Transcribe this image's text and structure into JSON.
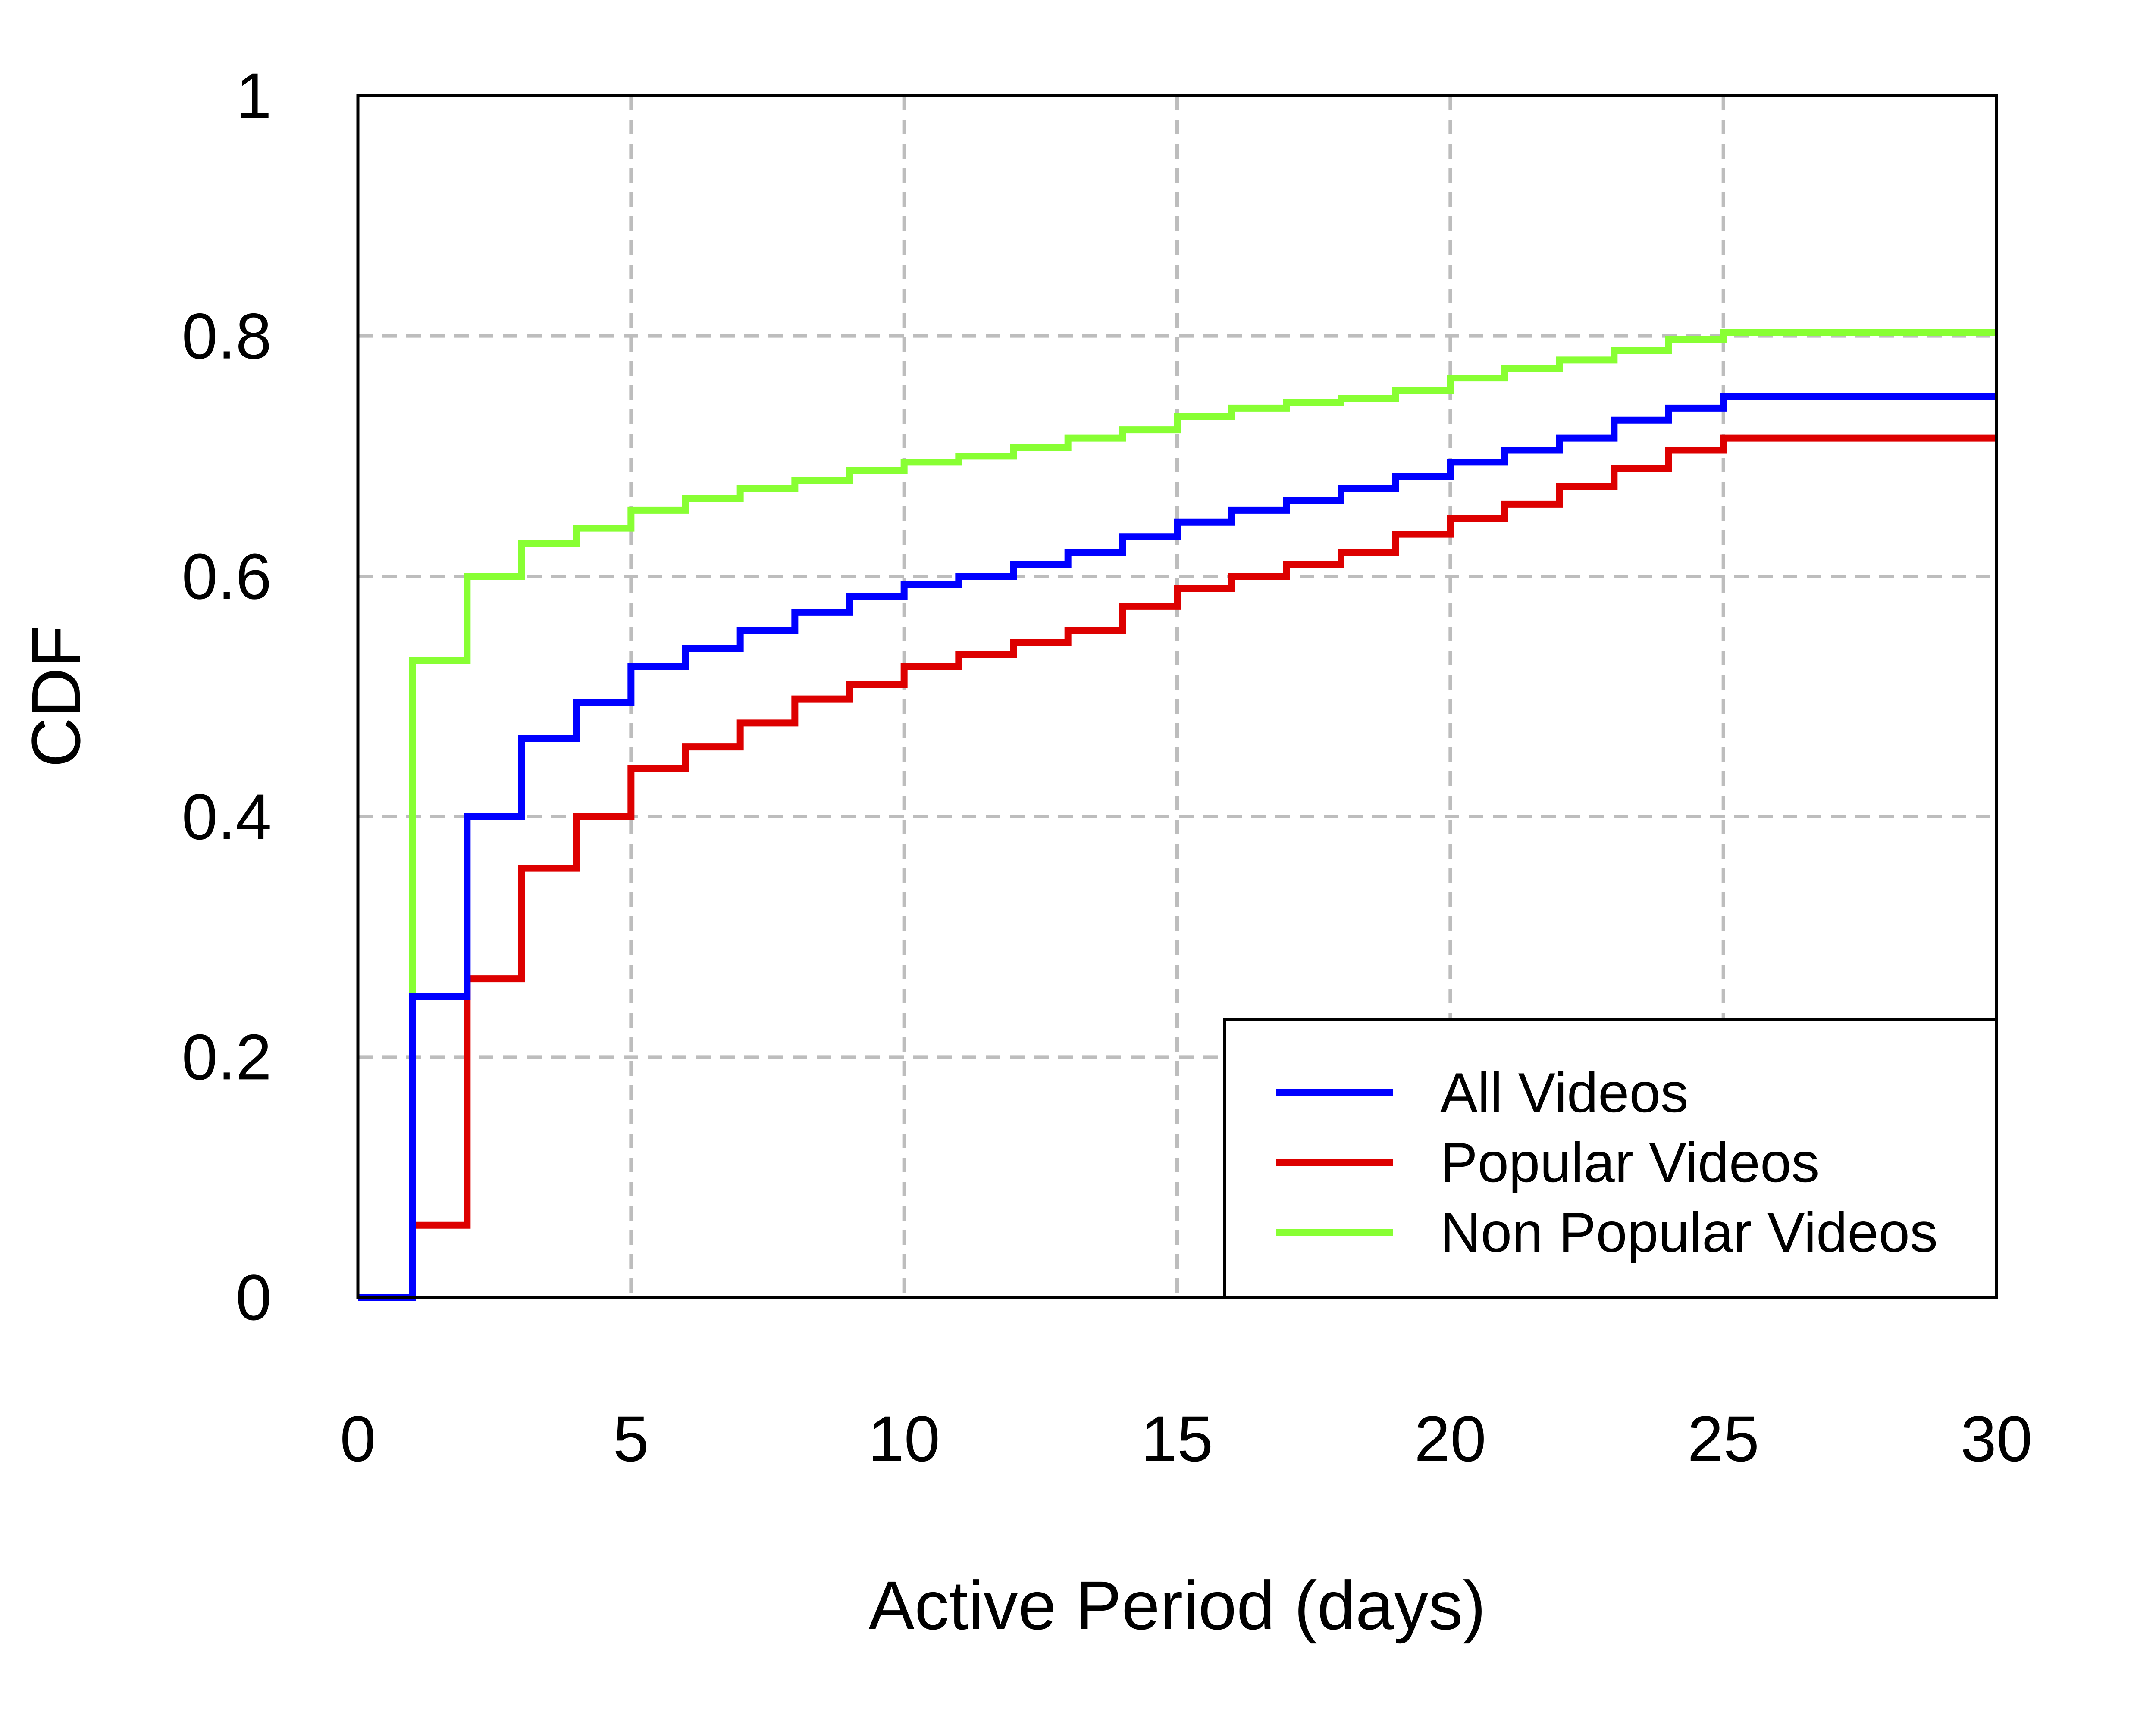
{
  "chart_data": {
    "type": "line",
    "step": true,
    "title": "",
    "xlabel": "Active Period (days)",
    "ylabel": "CDF",
    "xlim": [
      0,
      30
    ],
    "ylim": [
      0,
      1
    ],
    "xticks": [
      "0",
      "5",
      "10",
      "15",
      "20",
      "25",
      "30"
    ],
    "yticks": [
      "0",
      "0.2",
      "0.4",
      "0.6",
      "0.8",
      "1"
    ],
    "grid": true,
    "legend_position": "bottom-right",
    "x": [
      0,
      1,
      2,
      3,
      4,
      5,
      6,
      7,
      8,
      9,
      10,
      11,
      12,
      13,
      14,
      15,
      16,
      17,
      18,
      19,
      20,
      21,
      22,
      23,
      24,
      25,
      26,
      27,
      28,
      29,
      30
    ],
    "series": [
      {
        "name": "All Videos",
        "color": "#0000ff",
        "values": [
          0,
          0.25,
          0.4,
          0.465,
          0.495,
          0.525,
          0.54,
          0.555,
          0.57,
          0.583,
          0.593,
          0.6,
          0.61,
          0.62,
          0.633,
          0.645,
          0.655,
          0.663,
          0.673,
          0.683,
          0.695,
          0.705,
          0.715,
          0.73,
          0.74,
          0.75,
          0.75,
          0.75,
          0.75,
          0.75,
          0.75
        ]
      },
      {
        "name": "Popular Videos",
        "color": "#dd0000",
        "values": [
          0,
          0.06,
          0.265,
          0.357,
          0.4,
          0.44,
          0.458,
          0.478,
          0.498,
          0.51,
          0.525,
          0.535,
          0.545,
          0.555,
          0.575,
          0.59,
          0.6,
          0.61,
          0.62,
          0.635,
          0.648,
          0.66,
          0.675,
          0.69,
          0.705,
          0.715,
          0.715,
          0.715,
          0.715,
          0.715,
          0.715
        ]
      },
      {
        "name": "Non Popular Videos",
        "color": "#88ff33",
        "values": [
          0,
          0.53,
          0.6,
          0.627,
          0.64,
          0.655,
          0.665,
          0.673,
          0.68,
          0.688,
          0.695,
          0.7,
          0.707,
          0.715,
          0.722,
          0.733,
          0.74,
          0.745,
          0.748,
          0.755,
          0.765,
          0.773,
          0.78,
          0.788,
          0.797,
          0.803,
          0.803,
          0.803,
          0.803,
          0.803,
          0.803
        ]
      }
    ]
  }
}
